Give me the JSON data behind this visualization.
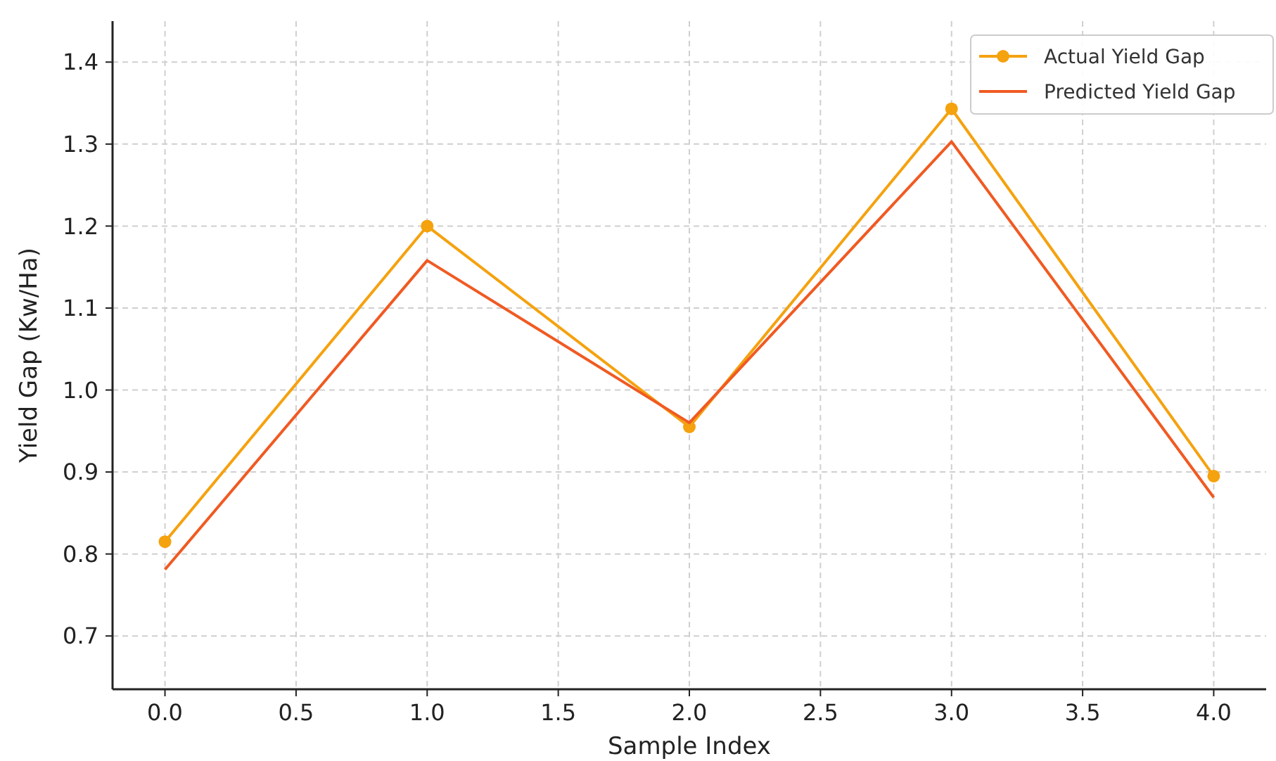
{
  "chart_data": {
    "type": "line",
    "xlabel": "Sample Index",
    "ylabel": "Yield Gap (Kw/Ha)",
    "x": [
      0,
      1,
      2,
      3,
      4
    ],
    "series": [
      {
        "name": "Actual Yield Gap",
        "color": "#f5a20f",
        "marker": "circle",
        "values": [
          0.815,
          1.2,
          0.955,
          1.343,
          0.895
        ]
      },
      {
        "name": "Predicted Yield Gap",
        "color": "#f05a22",
        "marker": "none",
        "values": [
          0.781,
          1.158,
          0.96,
          1.303,
          0.869
        ]
      }
    ],
    "xlim": [
      -0.2,
      4.2
    ],
    "xticks": [
      {
        "value": 0,
        "label": "0.0"
      },
      {
        "value": 0.5,
        "label": "0.5"
      },
      {
        "value": 1,
        "label": "1.0"
      },
      {
        "value": 1.5,
        "label": "1.5"
      },
      {
        "value": 2,
        "label": "2.0"
      },
      {
        "value": 2.5,
        "label": "2.5"
      },
      {
        "value": 3,
        "label": "3.0"
      },
      {
        "value": 3.5,
        "label": "3.5"
      },
      {
        "value": 4,
        "label": "4.0"
      }
    ],
    "ylim": [
      0.635,
      1.45
    ],
    "yticks": [
      0.7,
      0.8,
      0.9,
      {
        "value": 1,
        "label": "1.0"
      },
      1.1,
      1.2,
      1.3,
      1.4
    ],
    "grid": true,
    "legend": "top right",
    "line_style": "solid"
  }
}
